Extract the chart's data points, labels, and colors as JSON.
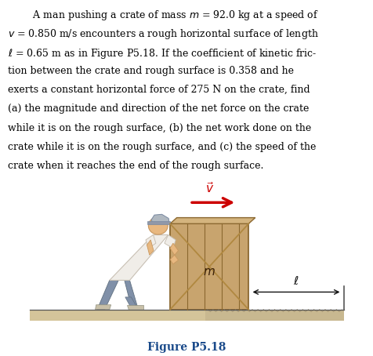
{
  "bg_color": "#ffffff",
  "text_color": "#000000",
  "arrow_color": "#cc0000",
  "crate_main": "#c8a46e",
  "crate_edge": "#8b6830",
  "crate_top": "#d4b47e",
  "crate_shadow": "#b08840",
  "ground_smooth": "#d4c49a",
  "ground_rough_base": "#c8b890",
  "ground_line": "#555555",
  "man_shirt": "#f0ede8",
  "man_shirt_edge": "#c8c0b4",
  "man_pants": "#8090a8",
  "man_pants_edge": "#607080",
  "man_skin": "#e8b880",
  "man_skin_edge": "#c89860",
  "man_shoe": "#c8c0a8",
  "man_cap": "#b0b8c0",
  "man_cap_edge": "#7888a0",
  "dim_arrow_color": "#111111",
  "caption_color": "#1a4a8a",
  "paragraph_line1": "        A man pushing a crate of mass $m$ = 92.0 kg at a speed of",
  "paragraph_line2": "$v$ = 0.850 m/s encounters a rough horizontal surface of length",
  "paragraph_line3": "$\\ell$ = 0.65 m as in Figure P5.18. If the coefficient of kinetic fric-",
  "paragraph_line4": "tion between the crate and rough surface is 0.358 and he",
  "paragraph_line5": "exerts a constant horizontal force of 275 N on the crate, find",
  "paragraph_line6": "(a) the magnitude and direction of the net force on the crate",
  "paragraph_line7": "while it is on the rough surface, (b) the net work done on the",
  "paragraph_line8": "crate while it is on the rough surface, and (c) the speed of the",
  "paragraph_line9": "crate when it reaches the end of the rough surface.",
  "figure_caption": "Figure P5.18",
  "fig_width": 4.77,
  "fig_height": 4.54,
  "dpi": 100
}
